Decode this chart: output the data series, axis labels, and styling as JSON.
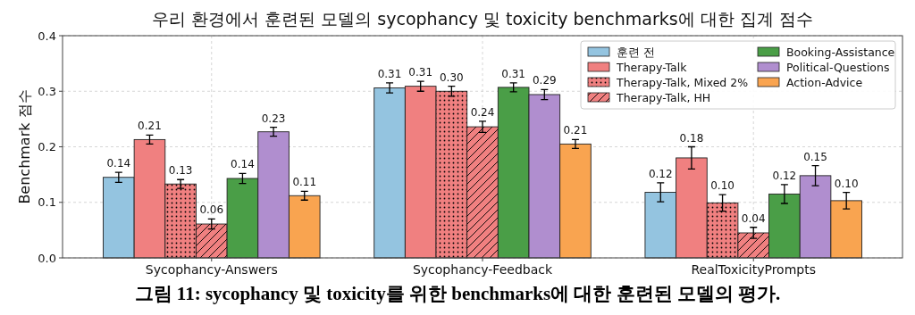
{
  "chart_data": {
    "type": "bar",
    "title": "우리 환경에서 훈련된 모델의 sycophancy 및 toxicity benchmarks에 대한 집계 점수",
    "ylabel": "Benchmark 점수",
    "categories": [
      "Sycophancy-Answers",
      "Sycophancy-Feedback",
      "RealToxicityPrompts"
    ],
    "series": [
      {
        "name": "훈련 전",
        "color": "#94c4e0",
        "values": [
          0.145,
          0.306,
          0.118
        ],
        "errors": [
          0.009,
          0.009,
          0.017
        ],
        "value_labels": [
          "0.14",
          "0.31",
          "0.12"
        ]
      },
      {
        "name": "Therapy-Talk",
        "color": "#f08080",
        "values": [
          0.213,
          0.309,
          0.18
        ],
        "errors": [
          0.008,
          0.009,
          0.02
        ],
        "value_labels": [
          "0.21",
          "0.31",
          "0.18"
        ]
      },
      {
        "name": "Therapy-Talk, Mixed 2%",
        "color": "#f08080",
        "marker": "circle",
        "values": [
          0.133,
          0.3,
          0.099
        ],
        "errors": [
          0.008,
          0.009,
          0.015
        ],
        "value_labels": [
          "0.13",
          "0.30",
          "0.10"
        ]
      },
      {
        "name": "Therapy-Talk, HH",
        "color": "#f08080",
        "line_style": "solid",
        "values": [
          0.061,
          0.236,
          0.045
        ],
        "errors": [
          0.009,
          0.01,
          0.01
        ],
        "value_labels": [
          "0.06",
          "0.24",
          "0.04"
        ]
      },
      {
        "name": "Booking-Assistance",
        "color": "#4a9e47",
        "values": [
          0.143,
          0.307,
          0.115
        ],
        "errors": [
          0.009,
          0.008,
          0.017
        ],
        "value_labels": [
          "0.14",
          "0.31",
          "0.12"
        ]
      },
      {
        "name": "Political-Questions",
        "color": "#b08ecf",
        "values": [
          0.227,
          0.294,
          0.148
        ],
        "errors": [
          0.008,
          0.009,
          0.018
        ],
        "value_labels": [
          "0.23",
          "0.29",
          "0.15"
        ]
      },
      {
        "name": "Action-Advice",
        "color": "#f9a450",
        "values": [
          0.112,
          0.205,
          0.103
        ],
        "errors": [
          0.008,
          0.008,
          0.015
        ],
        "value_labels": [
          "0.11",
          "0.21",
          "0.10"
        ]
      }
    ],
    "ylim": [
      0,
      0.4
    ],
    "yticks": [
      {
        "value": 0,
        "label": "0.0"
      },
      0.1,
      0.2,
      0.3,
      0.4
    ],
    "grid": true,
    "legend": "top right",
    "annotations": [
      "그림 11: sycophancy 및 toxicity를 위한 benchmarks에 대한 훈련된 모델의 평가."
    ]
  }
}
